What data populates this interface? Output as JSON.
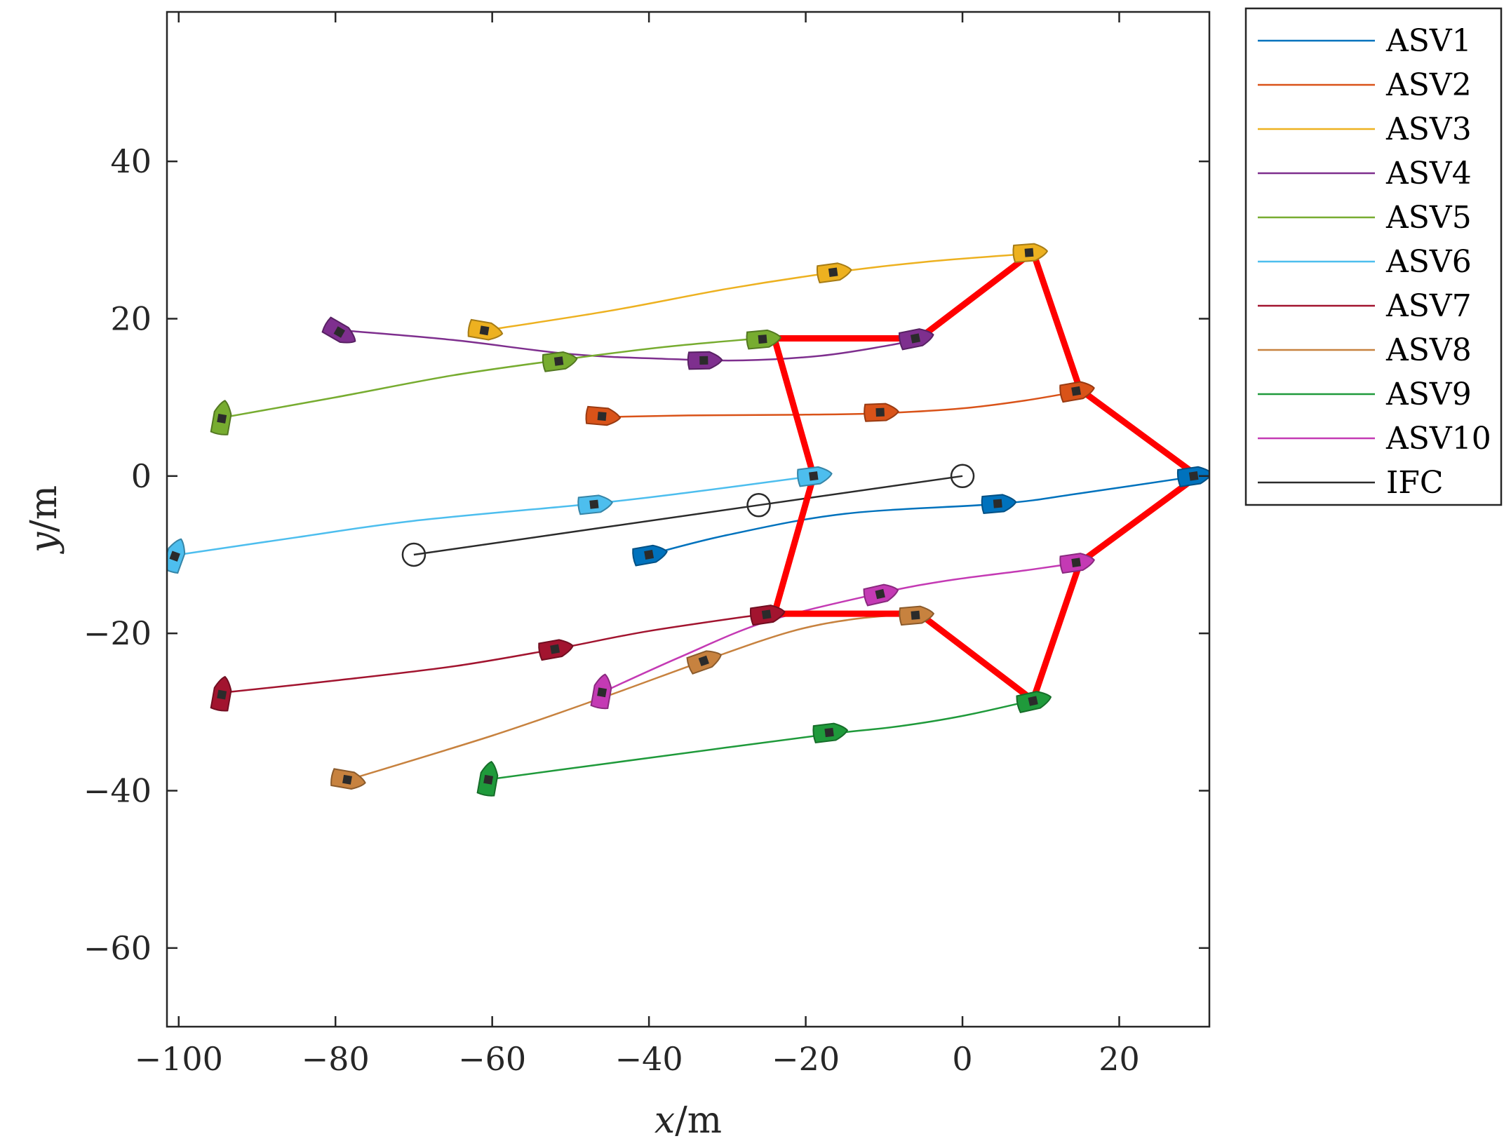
{
  "chart_data": {
    "type": "line",
    "xlabel": {
      "var": "x",
      "unit": "/m"
    },
    "ylabel": {
      "var": "y",
      "unit": "/m"
    },
    "xlim": [
      -101.5,
      31.5
    ],
    "ylim": [
      -70,
      59
    ],
    "xticks": [
      -100,
      -80,
      -60,
      -40,
      -20,
      0,
      20
    ],
    "yticks": [
      -60,
      -40,
      -20,
      0,
      20,
      40
    ],
    "xtick_labels": [
      "−100",
      "−80",
      "−60",
      "−40",
      "−20",
      "0",
      "20"
    ],
    "ytick_labels": [
      "−60",
      "−40",
      "−20",
      "0",
      "20",
      "40"
    ],
    "grid": false,
    "legend_position": "outside-right-top",
    "series": [
      {
        "name": "ASV1",
        "color": "#0072BD",
        "points": [
          [
            -40,
            -10
          ],
          [
            -30,
            -7.5
          ],
          [
            -15,
            -4.8
          ],
          [
            5,
            -3.5
          ],
          [
            15,
            -2.2
          ],
          [
            30,
            0
          ]
        ],
        "markers": [
          [
            -40,
            -10
          ],
          [
            4.5,
            -3.5
          ],
          [
            29.5,
            0
          ]
        ]
      },
      {
        "name": "ASV2",
        "color": "#D95319",
        "points": [
          [
            -46,
            7.5
          ],
          [
            -35,
            7.7
          ],
          [
            -20,
            7.8
          ],
          [
            -10,
            8
          ],
          [
            0,
            8.6
          ],
          [
            8,
            9.6
          ],
          [
            15,
            10.8
          ]
        ],
        "markers": [
          [
            -46,
            7.6
          ],
          [
            -10.5,
            8.1
          ],
          [
            14.5,
            10.8
          ]
        ]
      },
      {
        "name": "ASV3",
        "color": "#EDB120",
        "points": [
          [
            -61,
            18.5
          ],
          [
            -45,
            21
          ],
          [
            -30,
            23.8
          ],
          [
            -17,
            25.8
          ],
          [
            -5,
            27.2
          ],
          [
            9,
            28.3
          ]
        ],
        "markers": [
          [
            -61,
            18.5
          ],
          [
            -16.5,
            25.9
          ],
          [
            8.5,
            28.4
          ]
        ]
      },
      {
        "name": "ASV4",
        "color": "#7E2F8E",
        "points": [
          [
            -79,
            18.5
          ],
          [
            -65,
            17.3
          ],
          [
            -50,
            15.5
          ],
          [
            -38,
            14.9
          ],
          [
            -28,
            14.7
          ],
          [
            -18,
            15.3
          ],
          [
            -10,
            16.5
          ],
          [
            -5,
            17.5
          ]
        ],
        "markers": [
          [
            -79.5,
            18.3
          ],
          [
            -33,
            14.7
          ],
          [
            -6,
            17.5
          ]
        ]
      },
      {
        "name": "ASV5",
        "color": "#77AC30",
        "points": [
          [
            -94,
            7.5
          ],
          [
            -80,
            10
          ],
          [
            -65,
            12.8
          ],
          [
            -51,
            14.8
          ],
          [
            -38,
            16.4
          ],
          [
            -26,
            17.5
          ]
        ],
        "markers": [
          [
            -94.5,
            7.3
          ],
          [
            -51.5,
            14.6
          ],
          [
            -25.5,
            17.4
          ]
        ]
      },
      {
        "name": "ASV6",
        "color": "#4DBEEE",
        "points": [
          [
            -100,
            -10
          ],
          [
            -85,
            -7.8
          ],
          [
            -70,
            -5.7
          ],
          [
            -47,
            -3.5
          ],
          [
            -35,
            -2.1
          ],
          [
            -19,
            0
          ]
        ],
        "markers": [
          [
            -100.5,
            -10.2
          ],
          [
            -47,
            -3.6
          ],
          [
            -19,
            0
          ]
        ]
      },
      {
        "name": "ASV7",
        "color": "#A2142F",
        "points": [
          [
            -94,
            -27.5
          ],
          [
            -80,
            -26
          ],
          [
            -65,
            -24.2
          ],
          [
            -52,
            -22
          ],
          [
            -40,
            -19.7
          ],
          [
            -25,
            -17.5
          ]
        ],
        "markers": [
          [
            -94.5,
            -27.8
          ],
          [
            -52,
            -22
          ],
          [
            -25,
            -17.6
          ]
        ]
      },
      {
        "name": "ASV8",
        "color": "#C7823F",
        "points": [
          [
            -78,
            -38.5
          ],
          [
            -60,
            -33
          ],
          [
            -46,
            -28.2
          ],
          [
            -33,
            -23.5
          ],
          [
            -22,
            -19.8
          ],
          [
            -14,
            -18.2
          ],
          [
            -6,
            -17.5
          ]
        ],
        "markers": [
          [
            -78.5,
            -38.6
          ],
          [
            -33,
            -23.5
          ],
          [
            -6,
            -17.7
          ]
        ]
      },
      {
        "name": "ASV9",
        "color": "#1F9A3B",
        "points": [
          [
            -60,
            -38.5
          ],
          [
            -45,
            -36.5
          ],
          [
            -30,
            -34.5
          ],
          [
            -17,
            -32.8
          ],
          [
            -8,
            -31.8
          ],
          [
            0,
            -30.5
          ],
          [
            9,
            -28.5
          ]
        ],
        "markers": [
          [
            -60.5,
            -38.6
          ],
          [
            -17,
            -32.6
          ],
          [
            9,
            -28.6
          ]
        ]
      },
      {
        "name": "ASV10",
        "color": "#C43AB4",
        "points": [
          [
            -46,
            -27.5
          ],
          [
            -36,
            -23
          ],
          [
            -25,
            -18.5
          ],
          [
            -11,
            -15
          ],
          [
            -2,
            -13.3
          ],
          [
            8,
            -12
          ],
          [
            15,
            -11
          ]
        ],
        "markers": [
          [
            -46,
            -27.5
          ],
          [
            -10.5,
            -15
          ],
          [
            14.5,
            -11
          ]
        ]
      },
      {
        "name": "IFC",
        "color": "#2B2B2B",
        "points": [
          [
            -70,
            -10
          ],
          [
            -26,
            -3.7
          ],
          [
            0,
            0
          ]
        ],
        "markers": [
          [
            -70,
            -10
          ],
          [
            -26,
            -3.7
          ],
          [
            0,
            0
          ]
        ],
        "marker_style": "circle"
      }
    ],
    "formation": {
      "color": "#FF0000",
      "points": [
        [
          30,
          0
        ],
        [
          15,
          11
        ],
        [
          9,
          28.5
        ],
        [
          -5.5,
          17.5
        ],
        [
          -24,
          17.5
        ],
        [
          -19,
          0
        ],
        [
          -24,
          -17.5
        ],
        [
          -5.5,
          -17.5
        ],
        [
          9,
          -28.5
        ],
        [
          15,
          -11
        ],
        [
          30,
          0
        ]
      ]
    }
  }
}
